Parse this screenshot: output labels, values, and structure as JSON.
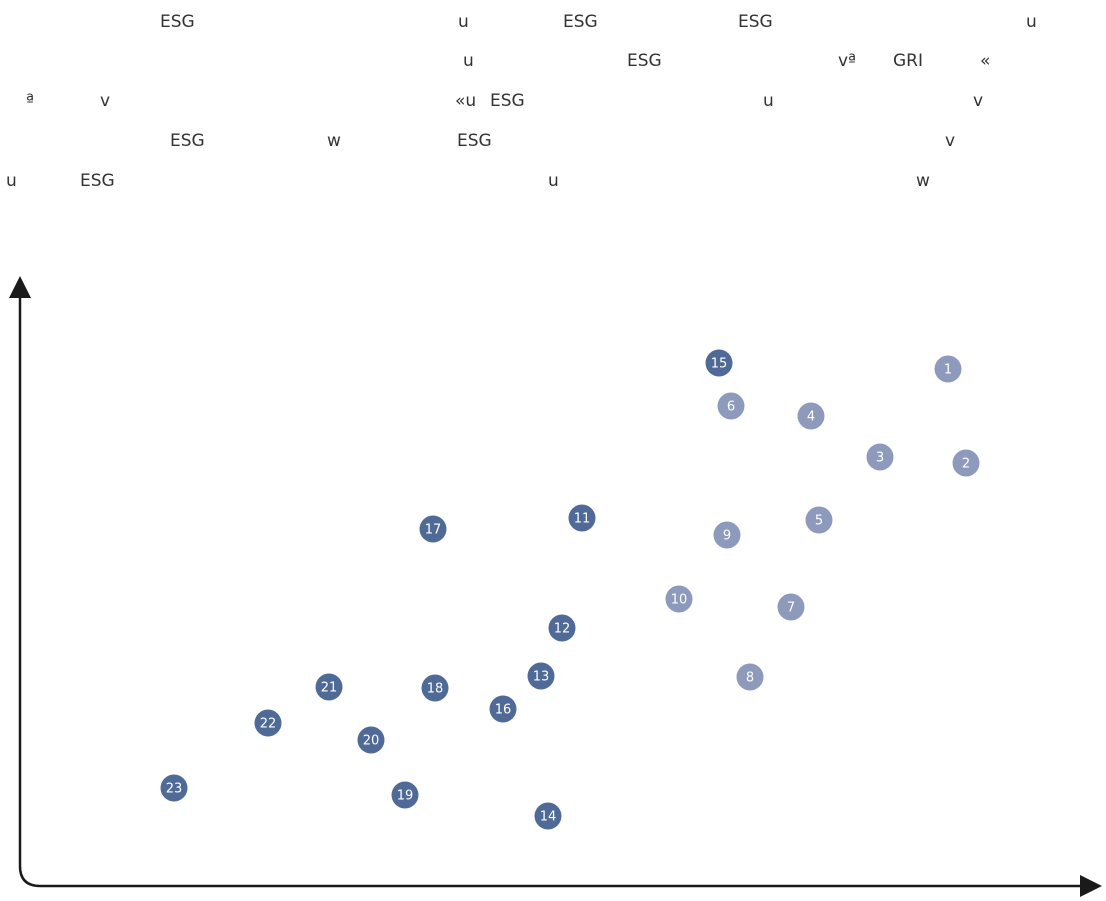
{
  "text_lines": [
    [
      "ESG",
      "u",
      "ESG",
      "ESG",
      "u"
    ],
    [
      "u",
      "ESG",
      "vª",
      "GRI",
      "«"
    ],
    [
      "ª",
      "v",
      "«u",
      "ESG",
      "u",
      "v"
    ],
    [
      "ESG",
      "w",
      "ESG",
      "v"
    ],
    [
      "u",
      "ESG",
      "u",
      "w"
    ]
  ],
  "nodes": [
    {
      "label": "1",
      "color": "#8e9abb"
    },
    {
      "label": "2",
      "color": "#8e9abb"
    },
    {
      "label": "3",
      "color": "#8e9abb"
    },
    {
      "label": "4",
      "color": "#8e9abb"
    },
    {
      "label": "5",
      "color": "#8e9abb"
    },
    {
      "label": "6",
      "color": "#8e9abb"
    },
    {
      "label": "7",
      "color": "#8e9abb"
    },
    {
      "label": "8",
      "color": "#8e9abb"
    },
    {
      "label": "9",
      "color": "#8e9abb"
    },
    {
      "label": "10",
      "color": "#8e9abb"
    },
    {
      "label": "11",
      "color": "#4f6a96"
    },
    {
      "label": "12",
      "color": "#4f6a96"
    },
    {
      "label": "13",
      "color": "#4f6a96"
    },
    {
      "label": "14",
      "color": "#4f6a96"
    },
    {
      "label": "15",
      "color": "#4f6a96"
    },
    {
      "label": "16",
      "color": "#4f6a96"
    },
    {
      "label": "17",
      "color": "#4f6a96"
    },
    {
      "label": "18",
      "color": "#4f6a96"
    },
    {
      "label": "19",
      "color": "#4f6a96"
    },
    {
      "label": "20",
      "color": "#4f6a96"
    },
    {
      "label": "21",
      "color": "#4f6a96"
    },
    {
      "label": "22",
      "color": "#4f6a96"
    },
    {
      "label": "23",
      "color": "#4f6a96"
    }
  ]
}
